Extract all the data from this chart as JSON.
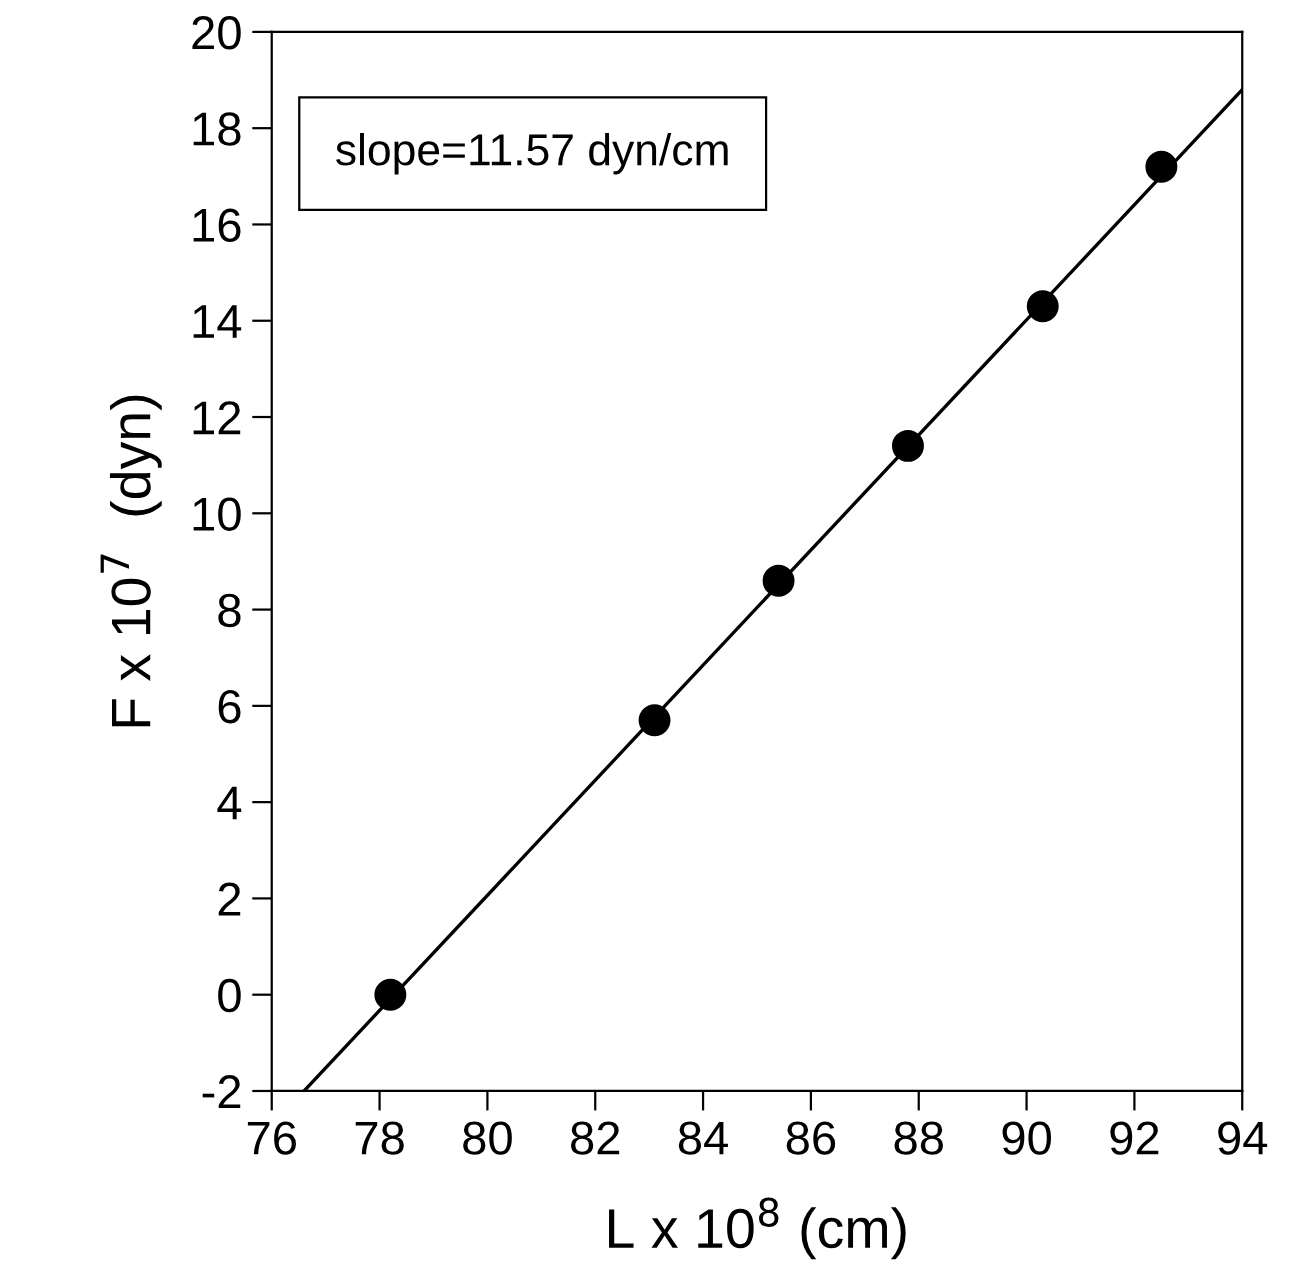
{
  "chart_data": {
    "type": "scatter",
    "xlabel": "L x 10$^{8}$ (cm)",
    "ylabel": "F x 10$^{7}$  (dyn)",
    "annotations": [
      "slope=11.57 dyn/cm"
    ],
    "series": [
      {
        "color": "#000000",
        "marker": "circle",
        "x": [
          78.2,
          83.1,
          85.4,
          87.8,
          90.3,
          92.5
        ],
        "values": [
          0,
          5.7,
          8.6,
          11.4,
          14.3,
          17.2
        ]
      },
      {
        "type": "line",
        "color": "#000000",
        "marker": "none",
        "x": [
          76.6,
          94
        ],
        "values": [
          -2,
          18.8
        ]
      }
    ],
    "xlim": [
      76,
      94
    ],
    "ylim": [
      -2,
      20
    ],
    "xticks": [
      76,
      78,
      80,
      82,
      84,
      86,
      88,
      90,
      92,
      94
    ],
    "yticks": [
      -2,
      0,
      2,
      4,
      6,
      8,
      10,
      12,
      14,
      16,
      18,
      20
    ],
    "grid": false,
    "legend": false
  }
}
